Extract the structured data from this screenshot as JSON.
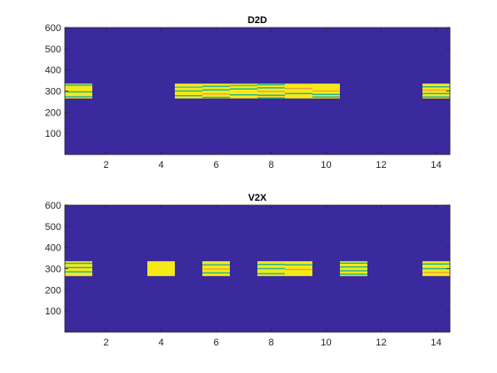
{
  "colors": {
    "background": "#3b2a9e",
    "block": "#f7e918",
    "stripe_green": "#20b391",
    "stripe_teal": "#3cc3a6",
    "stripe_orange": "#f3a33a",
    "axis": "#262626"
  },
  "chart_data": [
    {
      "type": "heatmap",
      "title": "D2D",
      "xlabel": "",
      "ylabel": "",
      "xlim": [
        0.5,
        14.5
      ],
      "ylim": [
        0,
        600
      ],
      "xticks": [
        2,
        4,
        6,
        8,
        10,
        12,
        14
      ],
      "yticks": [
        100,
        200,
        300,
        400,
        500,
        600
      ],
      "active_band": [
        265,
        335
      ],
      "blocks": [
        {
          "x": 1,
          "stripes": [
            {
              "y": 273,
              "color": "stripe_green"
            },
            {
              "y": 296,
              "color": "stripe_green"
            },
            {
              "y": 328,
              "color": "stripe_green"
            }
          ]
        },
        {
          "x": 5,
          "stripes": [
            {
              "y": 278,
              "color": "stripe_green"
            },
            {
              "y": 300,
              "color": "stripe_green"
            },
            {
              "y": 318,
              "color": "stripe_teal"
            }
          ]
        },
        {
          "x": 6,
          "stripes": [
            {
              "y": 270,
              "color": "stripe_green"
            },
            {
              "y": 286,
              "color": "stripe_orange"
            },
            {
              "y": 305,
              "color": "stripe_green"
            },
            {
              "y": 322,
              "color": "stripe_green"
            }
          ]
        },
        {
          "x": 7,
          "stripes": [
            {
              "y": 282,
              "color": "stripe_green"
            },
            {
              "y": 310,
              "color": "stripe_green"
            },
            {
              "y": 326,
              "color": "stripe_teal"
            }
          ]
        },
        {
          "x": 8,
          "stripes": [
            {
              "y": 268,
              "color": "stripe_green"
            },
            {
              "y": 280,
              "color": "stripe_green"
            },
            {
              "y": 298,
              "color": "stripe_orange"
            },
            {
              "y": 315,
              "color": "stripe_green"
            },
            {
              "y": 330,
              "color": "stripe_green"
            }
          ]
        },
        {
          "x": 9,
          "stripes": [
            {
              "y": 288,
              "color": "stripe_green"
            },
            {
              "y": 312,
              "color": "stripe_orange"
            }
          ]
        },
        {
          "x": 10,
          "stripes": [
            {
              "y": 272,
              "color": "stripe_green"
            },
            {
              "y": 284,
              "color": "stripe_green"
            },
            {
              "y": 300,
              "color": "stripe_orange"
            }
          ]
        },
        {
          "x": 14,
          "stripes": [
            {
              "y": 272,
              "color": "stripe_green"
            },
            {
              "y": 288,
              "color": "stripe_green"
            },
            {
              "y": 304,
              "color": "stripe_orange"
            },
            {
              "y": 320,
              "color": "stripe_green"
            }
          ]
        }
      ]
    },
    {
      "type": "heatmap",
      "title": "V2X",
      "xlabel": "",
      "ylabel": "",
      "xlim": [
        0.5,
        14.5
      ],
      "ylim": [
        0,
        600
      ],
      "xticks": [
        2,
        4,
        6,
        8,
        10,
        12,
        14
      ],
      "yticks": [
        100,
        200,
        300,
        400,
        500,
        600
      ],
      "active_band": [
        265,
        335
      ],
      "blocks": [
        {
          "x": 1,
          "stripes": [
            {
              "y": 285,
              "color": "stripe_green"
            },
            {
              "y": 305,
              "color": "stripe_green"
            },
            {
              "y": 325,
              "color": "stripe_green"
            }
          ]
        },
        {
          "x": 4,
          "stripes": []
        },
        {
          "x": 6,
          "stripes": [
            {
              "y": 280,
              "color": "stripe_green"
            },
            {
              "y": 298,
              "color": "stripe_orange"
            },
            {
              "y": 318,
              "color": "stripe_green"
            }
          ]
        },
        {
          "x": 8,
          "stripes": [
            {
              "y": 276,
              "color": "stripe_green"
            },
            {
              "y": 300,
              "color": "stripe_green"
            },
            {
              "y": 320,
              "color": "stripe_green"
            }
          ]
        },
        {
          "x": 9,
          "stripes": [
            {
              "y": 296,
              "color": "stripe_orange"
            },
            {
              "y": 318,
              "color": "stripe_green"
            }
          ]
        },
        {
          "x": 11,
          "stripes": [
            {
              "y": 274,
              "color": "stripe_green"
            },
            {
              "y": 290,
              "color": "stripe_green"
            },
            {
              "y": 308,
              "color": "stripe_green"
            },
            {
              "y": 326,
              "color": "stripe_green"
            }
          ]
        },
        {
          "x": 14,
          "stripes": [
            {
              "y": 282,
              "color": "stripe_orange"
            },
            {
              "y": 300,
              "color": "stripe_green"
            },
            {
              "y": 322,
              "color": "stripe_green"
            }
          ]
        }
      ]
    }
  ]
}
